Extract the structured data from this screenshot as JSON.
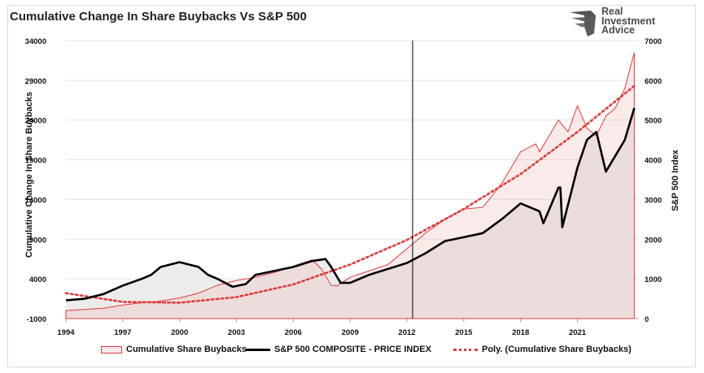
{
  "chart_data": {
    "type": "area",
    "title": "Cumulative Change In Share Buybacks Vs S&P 500",
    "ylabel": "Cumulative Change In Share Buybacks",
    "y2label": "S&P 500 Index",
    "xlim": [
      1994.0,
      2024.2
    ],
    "ylim": [
      -1000,
      34000
    ],
    "y2lim": [
      0,
      7000
    ],
    "x_ticks": [
      "1994",
      "1997",
      "2000",
      "2003",
      "2006",
      "2009",
      "2012",
      "2015",
      "2018",
      "2021"
    ],
    "y_ticks": [
      "-1000",
      "4000",
      "9000",
      "14000",
      "19000",
      "24000",
      "29000",
      "34000"
    ],
    "y2_ticks": [
      "0",
      "1000",
      "2000",
      "3000",
      "4000",
      "5000",
      "6000",
      "7000"
    ],
    "grid": true,
    "legend_position": "bottom",
    "vertical_marker_x": 2012.3,
    "series": [
      {
        "name": "Cumulative Share Buybacks",
        "axis": "left",
        "style": "area",
        "color": "#e23b3b",
        "x": [
          1994,
          1996,
          1997,
          1998,
          1999,
          2000,
          2001,
          2002,
          2003,
          2004,
          2005,
          2006,
          2007,
          2007.5,
          2008,
          2008.3,
          2009,
          2010,
          2011,
          2012,
          2013,
          2014,
          2015,
          2016,
          2017,
          2018,
          2018.8,
          2019,
          2020,
          2020.5,
          2021,
          2021.5,
          2022,
          2022.5,
          2023,
          2023.5,
          2024
        ],
        "values": [
          0,
          300,
          700,
          1000,
          1200,
          1600,
          2200,
          3200,
          3800,
          4200,
          4800,
          5600,
          6400,
          5200,
          3200,
          3100,
          4200,
          5000,
          5800,
          7800,
          9800,
          11500,
          12800,
          13000,
          16000,
          20000,
          21000,
          20000,
          24000,
          22500,
          25800,
          23000,
          22000,
          24500,
          25500,
          28000,
          32500
        ]
      },
      {
        "name": "S&P 500 COMPOSITE - PRICE INDEX",
        "axis": "right",
        "style": "line",
        "color": "#000000",
        "x": [
          1994,
          1995,
          1996,
          1997,
          1998,
          1998.5,
          1999,
          2000,
          2001,
          2001.5,
          2002,
          2002.8,
          2003.5,
          2004,
          2005,
          2006,
          2007,
          2007.7,
          2008,
          2008.5,
          2009,
          2010,
          2011,
          2012,
          2013,
          2014,
          2015,
          2016,
          2017,
          2018,
          2019,
          2019.2,
          2020,
          2020.1,
          2020.2,
          2021,
          2021.5,
          2022,
          2022.5,
          2023,
          2023.5,
          2024
        ],
        "values": [
          460,
          500,
          620,
          830,
          1000,
          1100,
          1300,
          1420,
          1300,
          1100,
          1000,
          800,
          870,
          1100,
          1200,
          1300,
          1450,
          1500,
          1300,
          900,
          900,
          1100,
          1250,
          1400,
          1650,
          1950,
          2050,
          2150,
          2500,
          2900,
          2700,
          2400,
          3300,
          3300,
          2300,
          3800,
          4500,
          4700,
          3700,
          4100,
          4500,
          5300
        ]
      },
      {
        "name": "Poly. (Cumulative Share Buybacks)",
        "axis": "left",
        "style": "dotted-trendline",
        "color": "#e23b3b",
        "x": [
          1994,
          1997,
          2000,
          2003,
          2006,
          2009,
          2012,
          2015,
          2018,
          2021,
          2024
        ],
        "values": [
          2200,
          1100,
          1000,
          1700,
          3300,
          5800,
          8900,
          12800,
          17200,
          22500,
          28300
        ]
      }
    ]
  },
  "logo": {
    "lines": [
      "Real",
      "Investment",
      "Advice"
    ]
  }
}
